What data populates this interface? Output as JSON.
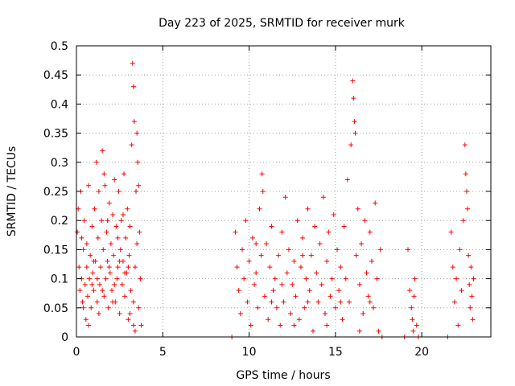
{
  "chart_data": {
    "type": "scatter",
    "title": "Day 223 of 2025, SRMTID for receiver murk",
    "xlabel": "GPS time / hours",
    "ylabel": "SRMTID / TECUs",
    "xlim": [
      0,
      24
    ],
    "ylim": [
      0,
      0.5
    ],
    "xticks": [
      0,
      5,
      10,
      15,
      20
    ],
    "yticks": [
      0,
      0.05,
      0.1,
      0.15,
      0.2,
      0.25,
      0.3,
      0.35,
      0.4,
      0.45,
      0.5
    ],
    "ytick_labels": [
      "0",
      "0.05",
      "0.1",
      "0.15",
      "0.2",
      "0.25",
      "0.3",
      "0.35",
      "0.4",
      "0.45",
      "0.5"
    ],
    "xtick_labels": [
      "0",
      "5",
      "10",
      "15",
      "20"
    ],
    "grid": true,
    "marker": "+",
    "color": "#ff0000",
    "series": [
      {
        "name": "SRMTID",
        "points": [
          [
            0.05,
            0.18
          ],
          [
            0.1,
            0.22
          ],
          [
            0.15,
            0.12
          ],
          [
            0.2,
            0.08
          ],
          [
            0.25,
            0.25
          ],
          [
            0.3,
            0.1
          ],
          [
            0.35,
            0.06
          ],
          [
            0.4,
            0.15
          ],
          [
            0.45,
            0.2
          ],
          [
            0.5,
            0.09
          ],
          [
            0.55,
            0.03
          ],
          [
            0.6,
            0.12
          ],
          [
            0.65,
            0.07
          ],
          [
            0.7,
            0.26
          ],
          [
            0.75,
            0.1
          ],
          [
            0.8,
            0.14
          ],
          [
            0.85,
            0.05
          ],
          [
            0.9,
            0.19
          ],
          [
            0.95,
            0.11
          ],
          [
            1.0,
            0.08
          ],
          [
            1.05,
            0.22
          ],
          [
            1.1,
            0.13
          ],
          [
            1.15,
            0.3
          ],
          [
            1.2,
            0.06
          ],
          [
            1.25,
            0.17
          ],
          [
            1.3,
            0.25
          ],
          [
            1.35,
            0.09
          ],
          [
            1.4,
            0.12
          ],
          [
            1.45,
            0.2
          ],
          [
            1.5,
            0.32
          ],
          [
            1.55,
            0.15
          ],
          [
            1.6,
            0.07
          ],
          [
            1.65,
            0.26
          ],
          [
            1.7,
            0.1
          ],
          [
            1.75,
            0.18
          ],
          [
            1.8,
            0.13
          ],
          [
            1.85,
            0.05
          ],
          [
            1.9,
            0.23
          ],
          [
            1.95,
            0.11
          ],
          [
            2.0,
            0.16
          ],
          [
            2.05,
            0.08
          ],
          [
            2.1,
            0.21
          ],
          [
            2.15,
            0.14
          ],
          [
            2.2,
            0.27
          ],
          [
            2.25,
            0.06
          ],
          [
            2.3,
            0.19
          ],
          [
            2.35,
            0.1
          ],
          [
            2.4,
            0.12
          ],
          [
            2.45,
            0.25
          ],
          [
            2.5,
            0.04
          ],
          [
            2.55,
            0.15
          ],
          [
            2.6,
            0.2
          ],
          [
            2.65,
            0.09
          ],
          [
            2.7,
            0.13
          ],
          [
            2.75,
            0.28
          ],
          [
            2.8,
            0.07
          ],
          [
            2.85,
            0.17
          ],
          [
            2.9,
            0.11
          ],
          [
            2.95,
            0.22
          ],
          [
            3.0,
            0.03
          ],
          [
            3.05,
            0.14
          ],
          [
            3.1,
            0.19
          ],
          [
            3.15,
            0.08
          ],
          [
            3.2,
            0.33
          ],
          [
            3.25,
            0.47
          ],
          [
            3.3,
            0.43
          ],
          [
            3.35,
            0.37
          ],
          [
            3.4,
            0.12
          ],
          [
            3.45,
            0.25
          ],
          [
            3.5,
            0.35
          ],
          [
            3.55,
            0.3
          ],
          [
            3.6,
            0.05
          ],
          [
            3.65,
            0.18
          ],
          [
            3.7,
            0.1
          ],
          [
            3.75,
            0.02
          ],
          [
            3.3,
            0.02
          ],
          [
            3.4,
            0.01
          ],
          [
            0.3,
            0.17
          ],
          [
            0.6,
            0.16
          ],
          [
            0.9,
            0.09
          ],
          [
            1.2,
            0.1
          ],
          [
            1.5,
            0.08
          ],
          [
            1.8,
            0.2
          ],
          [
            2.1,
            0.06
          ],
          [
            2.4,
            0.17
          ],
          [
            2.7,
            0.21
          ],
          [
            3.0,
            0.12
          ],
          [
            3.3,
            0.06
          ],
          [
            3.6,
            0.26
          ],
          [
            0.4,
            0.05
          ],
          [
            0.7,
            0.02
          ],
          [
            1.0,
            0.13
          ],
          [
            1.3,
            0.04
          ],
          [
            1.6,
            0.28
          ],
          [
            1.9,
            0.12
          ],
          [
            2.2,
            0.09
          ],
          [
            2.5,
            0.13
          ],
          [
            2.8,
            0.11
          ],
          [
            3.1,
            0.04
          ],
          [
            3.5,
            0.16
          ],
          [
            9.0,
            0.0
          ],
          [
            9.2,
            0.18
          ],
          [
            9.3,
            0.12
          ],
          [
            9.4,
            0.08
          ],
          [
            9.5,
            0.04
          ],
          [
            9.6,
            0.15
          ],
          [
            9.7,
            0.1
          ],
          [
            9.8,
            0.2
          ],
          [
            9.9,
            0.06
          ],
          [
            10.0,
            0.13
          ],
          [
            10.1,
            0.02
          ],
          [
            10.2,
            0.17
          ],
          [
            10.3,
            0.09
          ],
          [
            10.4,
            0.11
          ],
          [
            10.5,
            0.05
          ],
          [
            10.6,
            0.22
          ],
          [
            10.7,
            0.14
          ],
          [
            10.75,
            0.28
          ],
          [
            10.8,
            0.25
          ],
          [
            10.9,
            0.07
          ],
          [
            11.0,
            0.16
          ],
          [
            11.1,
            0.03
          ],
          [
            11.2,
            0.12
          ],
          [
            11.3,
            0.19
          ],
          [
            11.4,
            0.08
          ],
          [
            11.5,
            0.1
          ],
          [
            11.6,
            0.05
          ],
          [
            11.7,
            0.14
          ],
          [
            11.8,
            0.02
          ],
          [
            11.9,
            0.18
          ],
          [
            12.0,
            0.06
          ],
          [
            12.1,
            0.24
          ],
          [
            12.2,
            0.11
          ],
          [
            12.3,
            0.15
          ],
          [
            12.4,
            0.04
          ],
          [
            12.5,
            0.09
          ],
          [
            12.6,
            0.13
          ],
          [
            12.7,
            0.07
          ],
          [
            12.8,
            0.2
          ],
          [
            12.9,
            0.03
          ],
          [
            13.0,
            0.12
          ],
          [
            13.1,
            0.17
          ],
          [
            13.2,
            0.05
          ],
          [
            13.3,
            0.1
          ],
          [
            13.4,
            0.22
          ],
          [
            13.5,
            0.08
          ],
          [
            13.6,
            0.14
          ],
          [
            13.7,
            0.01
          ],
          [
            13.8,
            0.19
          ],
          [
            13.9,
            0.11
          ],
          [
            14.0,
            0.06
          ],
          [
            14.1,
            0.16
          ],
          [
            14.2,
            0.09
          ],
          [
            14.3,
            0.24
          ],
          [
            14.4,
            0.04
          ],
          [
            14.5,
            0.13
          ],
          [
            14.6,
            0.18
          ],
          [
            14.7,
            0.07
          ],
          [
            14.8,
            0.1
          ],
          [
            14.9,
            0.21
          ],
          [
            15.0,
            0.05
          ],
          [
            15.1,
            0.15
          ],
          [
            15.2,
            0.08
          ],
          [
            15.3,
            0.12
          ],
          [
            15.4,
            0.03
          ],
          [
            15.5,
            0.19
          ],
          [
            15.6,
            0.1
          ],
          [
            15.7,
            0.27
          ],
          [
            15.8,
            0.06
          ],
          [
            15.9,
            0.33
          ],
          [
            16.0,
            0.44
          ],
          [
            16.05,
            0.41
          ],
          [
            16.1,
            0.37
          ],
          [
            16.15,
            0.35
          ],
          [
            16.2,
            0.14
          ],
          [
            16.3,
            0.22
          ],
          [
            16.4,
            0.09
          ],
          [
            16.5,
            0.16
          ],
          [
            16.6,
            0.04
          ],
          [
            16.7,
            0.2
          ],
          [
            16.8,
            0.11
          ],
          [
            16.9,
            0.07
          ],
          [
            17.0,
            0.18
          ],
          [
            17.1,
            0.13
          ],
          [
            17.2,
            0.05
          ],
          [
            17.3,
            0.23
          ],
          [
            17.4,
            0.1
          ],
          [
            17.5,
            0.01
          ],
          [
            17.6,
            0.15
          ],
          [
            17.7,
            0.0
          ],
          [
            10.4,
            0.16
          ],
          [
            11.3,
            0.06
          ],
          [
            12.6,
            0.02
          ],
          [
            13.4,
            0.06
          ],
          [
            14.5,
            0.02
          ],
          [
            15.3,
            0.06
          ],
          [
            16.4,
            0.01
          ],
          [
            17.0,
            0.06
          ],
          [
            11.9,
            0.09
          ],
          [
            13.1,
            0.14
          ],
          [
            19.0,
            0.0
          ],
          [
            19.2,
            0.15
          ],
          [
            19.3,
            0.08
          ],
          [
            19.4,
            0.05
          ],
          [
            19.45,
            0.03
          ],
          [
            19.5,
            0.01
          ],
          [
            19.55,
            0.07
          ],
          [
            19.6,
            0.1
          ],
          [
            19.7,
            0.02
          ],
          [
            19.8,
            0.0
          ],
          [
            21.5,
            0.0
          ],
          [
            21.7,
            0.18
          ],
          [
            21.8,
            0.12
          ],
          [
            21.9,
            0.06
          ],
          [
            22.0,
            0.1
          ],
          [
            22.1,
            0.02
          ],
          [
            22.2,
            0.15
          ],
          [
            22.3,
            0.08
          ],
          [
            22.4,
            0.2
          ],
          [
            22.5,
            0.33
          ],
          [
            22.55,
            0.28
          ],
          [
            22.6,
            0.25
          ],
          [
            22.65,
            0.22
          ],
          [
            22.7,
            0.14
          ],
          [
            22.75,
            0.09
          ],
          [
            22.8,
            0.05
          ],
          [
            22.85,
            0.12
          ],
          [
            22.9,
            0.07
          ],
          [
            22.95,
            0.03
          ],
          [
            23.0,
            0.1
          ]
        ]
      }
    ]
  }
}
